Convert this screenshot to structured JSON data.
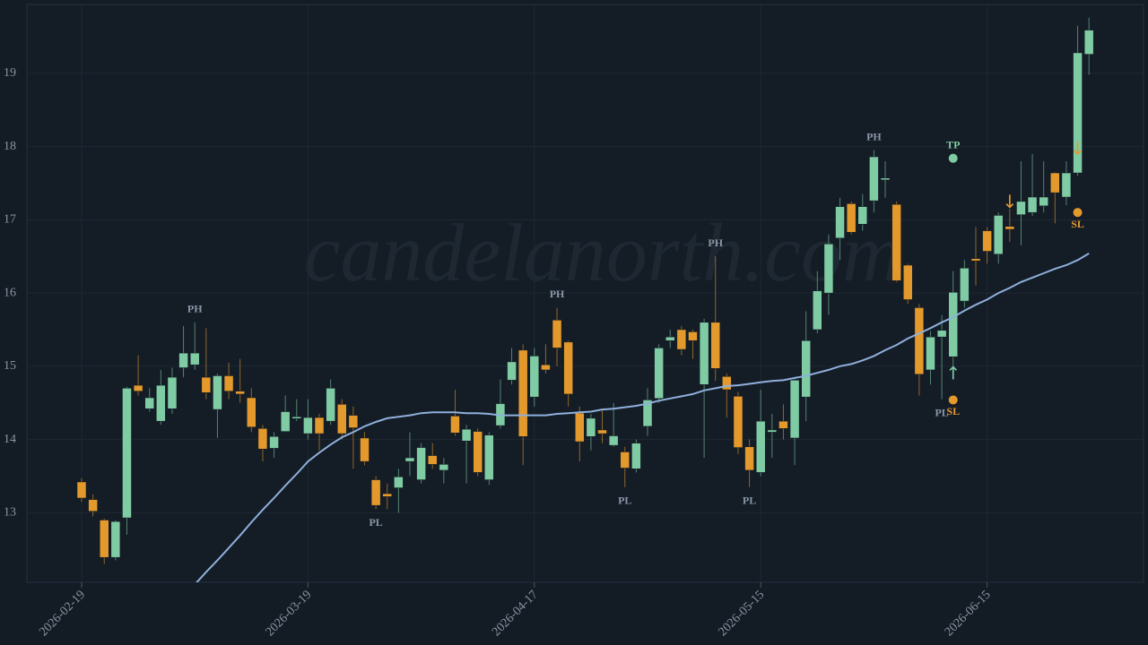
{
  "chart_data": {
    "type": "candlestick",
    "watermark": "candelanorth.com",
    "up_color": "#7fcba3",
    "down_color": "#e3992c",
    "ma_color": "#8fb0dc",
    "grid": true,
    "categories": [
      "2026-02-19",
      null,
      null,
      null,
      null,
      null,
      null,
      null,
      null,
      null,
      null,
      null,
      null,
      null,
      null,
      null,
      null,
      null,
      null,
      null,
      "2026-03-19",
      null,
      null,
      null,
      null,
      null,
      null,
      null,
      null,
      null,
      null,
      null,
      null,
      null,
      null,
      null,
      null,
      null,
      null,
      null,
      "2026-04-17",
      null,
      null,
      null,
      null,
      null,
      null,
      null,
      null,
      null,
      null,
      null,
      null,
      null,
      null,
      null,
      null,
      null,
      null,
      null,
      "2026-05-15",
      null,
      null,
      null,
      null,
      null,
      null,
      null,
      null,
      null,
      null,
      null,
      null,
      null,
      null,
      null,
      null,
      null,
      null,
      null,
      "2026-06-15",
      null,
      null,
      null,
      null,
      null,
      null,
      null,
      null,
      null
    ],
    "open": [
      13.42,
      13.18,
      12.9,
      12.39,
      12.93,
      14.74,
      14.42,
      14.25,
      14.42,
      14.98,
      15.02,
      14.85,
      14.41,
      14.87,
      14.66,
      14.57,
      14.15,
      13.88,
      14.11,
      14.29,
      14.08,
      14.3,
      14.25,
      14.48,
      14.33,
      14.02,
      13.45,
      13.26,
      13.34,
      13.7,
      13.45,
      13.78,
      13.58,
      14.32,
      13.98,
      14.11,
      13.45,
      14.19,
      14.81,
      15.22,
      14.58,
      15.02,
      15.63,
      15.33,
      14.36,
      14.04,
      14.13,
      13.92,
      13.83,
      13.6,
      14.18,
      14.56,
      15.35,
      15.5,
      15.47,
      14.75,
      15.6,
      14.86,
      14.59,
      13.9,
      13.55,
      14.1,
      14.25,
      14.02,
      14.58,
      15.5,
      16.0,
      16.75,
      17.22,
      16.94,
      17.26,
      17.55,
      17.21,
      16.38,
      15.8,
      14.95,
      15.4,
      15.13,
      15.89,
      16.47,
      16.85,
      16.53,
      16.91,
      17.07,
      17.1,
      17.19,
      17.64,
      17.31,
      17.64,
      19.26
    ],
    "high": [
      13.47,
      13.25,
      12.92,
      12.9,
      14.72,
      15.15,
      14.7,
      14.95,
      14.98,
      15.55,
      15.6,
      15.52,
      14.9,
      15.05,
      15.1,
      14.7,
      14.2,
      14.1,
      14.6,
      14.55,
      14.55,
      14.35,
      14.82,
      14.55,
      14.45,
      14.1,
      13.5,
      13.4,
      13.6,
      14.1,
      13.95,
      13.95,
      13.75,
      14.68,
      14.2,
      14.15,
      14.1,
      14.82,
      15.25,
      15.3,
      15.25,
      15.3,
      15.8,
      15.35,
      14.45,
      14.35,
      14.4,
      14.5,
      13.9,
      14.0,
      14.7,
      15.3,
      15.5,
      15.55,
      15.5,
      15.65,
      16.5,
      14.9,
      14.65,
      14.0,
      14.68,
      14.35,
      14.48,
      14.82,
      15.75,
      16.3,
      16.8,
      17.3,
      17.25,
      17.35,
      17.95,
      17.8,
      17.25,
      16.4,
      15.85,
      15.48,
      15.7,
      16.3,
      16.45,
      16.9,
      16.9,
      17.1,
      17.15,
      17.8,
      17.9,
      17.8,
      17.65,
      17.8,
      19.65,
      19.76
    ],
    "low": [
      13.15,
      12.95,
      12.3,
      12.35,
      12.7,
      14.6,
      14.38,
      14.2,
      14.35,
      14.85,
      14.95,
      14.55,
      14.02,
      14.55,
      14.5,
      14.1,
      13.7,
      13.75,
      14.1,
      14.25,
      14.0,
      13.85,
      14.2,
      14.0,
      13.6,
      13.65,
      13.05,
      13.05,
      13.0,
      13.5,
      13.4,
      13.6,
      13.4,
      14.05,
      13.4,
      13.5,
      13.38,
      14.15,
      14.75,
      13.65,
      14.45,
      14.9,
      15.0,
      14.45,
      13.7,
      13.85,
      13.95,
      13.9,
      13.35,
      13.55,
      14.05,
      14.5,
      15.25,
      15.15,
      15.1,
      13.75,
      14.8,
      14.3,
      13.8,
      13.35,
      13.5,
      13.75,
      14.0,
      13.65,
      14.25,
      15.45,
      15.7,
      16.45,
      16.8,
      16.85,
      17.1,
      17.3,
      16.15,
      15.85,
      14.6,
      14.75,
      14.55,
      14.9,
      15.8,
      16.1,
      16.4,
      16.4,
      16.7,
      16.65,
      17.05,
      17.1,
      16.95,
      17.2,
      17.6,
      18.98
    ],
    "close": [
      13.2,
      13.02,
      12.39,
      12.88,
      14.7,
      14.66,
      14.57,
      14.74,
      14.85,
      15.18,
      15.18,
      14.64,
      14.87,
      14.66,
      14.62,
      14.17,
      13.87,
      14.04,
      14.38,
      14.31,
      14.3,
      14.08,
      14.7,
      14.08,
      14.16,
      13.7,
      13.1,
      13.22,
      13.49,
      13.75,
      13.89,
      13.66,
      13.66,
      14.09,
      14.14,
      13.55,
      14.06,
      14.49,
      15.06,
      14.04,
      15.14,
      14.95,
      15.25,
      14.62,
      13.97,
      14.29,
      14.08,
      14.05,
      13.61,
      13.95,
      14.54,
      15.25,
      15.4,
      15.23,
      15.35,
      15.6,
      14.97,
      14.68,
      13.89,
      13.58,
      14.25,
      14.13,
      14.15,
      14.81,
      15.35,
      16.03,
      16.67,
      17.18,
      16.83,
      17.18,
      17.86,
      17.57,
      16.17,
      15.91,
      14.89,
      15.4,
      15.49,
      16.01,
      16.34,
      16.44,
      16.57,
      17.06,
      16.87,
      17.25,
      17.31,
      17.31,
      17.37,
      17.64,
      19.28,
      19.59
    ],
    "ma": [
      null,
      null,
      null,
      null,
      null,
      null,
      null,
      null,
      null,
      null,
      12.02,
      12.19,
      12.35,
      12.52,
      12.69,
      12.87,
      13.04,
      13.2,
      13.37,
      13.53,
      13.7,
      13.82,
      13.93,
      14.03,
      14.1,
      14.18,
      14.24,
      14.29,
      14.31,
      14.33,
      14.36,
      14.37,
      14.37,
      14.37,
      14.36,
      14.36,
      14.35,
      14.33,
      14.33,
      14.33,
      14.33,
      14.33,
      14.35,
      14.36,
      14.37,
      14.38,
      14.41,
      14.42,
      14.44,
      14.46,
      14.49,
      14.53,
      14.56,
      14.59,
      14.62,
      14.67,
      14.7,
      14.73,
      14.74,
      14.76,
      14.78,
      14.8,
      14.81,
      14.84,
      14.87,
      14.91,
      14.95,
      15.0,
      15.03,
      15.08,
      15.14,
      15.22,
      15.29,
      15.38,
      15.45,
      15.52,
      15.6,
      15.67,
      15.76,
      15.84,
      15.91,
      16.0,
      16.07,
      16.15,
      16.21,
      16.27,
      16.33,
      16.38,
      16.45,
      16.54
    ],
    "pivots": [
      {
        "index": 10,
        "label": "PH"
      },
      {
        "index": 26,
        "label": "PL"
      },
      {
        "index": 42,
        "label": "PH"
      },
      {
        "index": 48,
        "label": "PL"
      },
      {
        "index": 56,
        "label": "PH"
      },
      {
        "index": 59,
        "label": "PL"
      },
      {
        "index": 70,
        "label": "PH"
      },
      {
        "index": 76,
        "label": "PL"
      }
    ],
    "signals": [
      {
        "index": 77,
        "label": "↑",
        "color": "#7fcba3"
      },
      {
        "index": 82,
        "label": "↓",
        "color": "#e3992c"
      },
      {
        "index": 88,
        "label": "↓",
        "color": "#e3992c"
      }
    ],
    "levels": [
      {
        "index": 77,
        "label": "TP",
        "value": 17.84,
        "color": "#7fcba3"
      },
      {
        "index": 77,
        "label": "SL",
        "value": 14.54,
        "color": "#e3992c"
      },
      {
        "index": 88,
        "label": "SL",
        "value": 17.1,
        "color": "#e3992c"
      }
    ],
    "ylim": [
      12.05,
      19.94
    ],
    "yticks": [
      13,
      14,
      15,
      16,
      17,
      18,
      19
    ]
  }
}
